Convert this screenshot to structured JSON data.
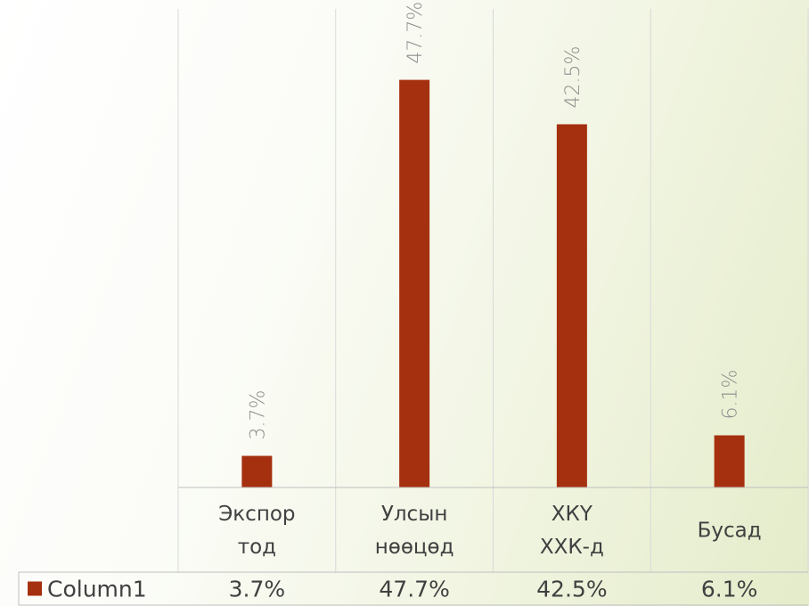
{
  "chart_data": {
    "type": "bar",
    "categories": [
      [
        "Экспор",
        "тод"
      ],
      [
        "Улсын",
        "нөөцөд"
      ],
      [
        "ХКҮ",
        "ХХК-д"
      ],
      [
        "Бусад"
      ]
    ],
    "series": [
      {
        "name": "Column1",
        "values": [
          3.7,
          47.7,
          42.5,
          6.1
        ],
        "labels": [
          "3.7%",
          "47.7%",
          "42.5%",
          "6.1%"
        ],
        "color": "#a5300f"
      }
    ],
    "ylim": [
      0,
      56
    ],
    "grid": true,
    "data_table": true,
    "legend": "data-table"
  }
}
